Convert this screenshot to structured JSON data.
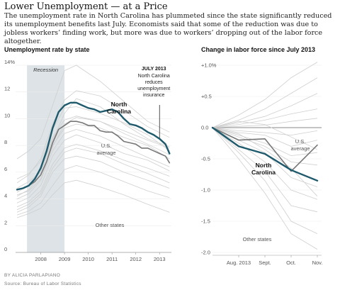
{
  "header": {
    "title": "Lower Unemployment — at a Price",
    "dek": "The unemployment rate in North Carolina has plummeted since the state significantly reduced its unemployment benefits last July. Economists said that some of the reduction was due to jobless workers’ finding work, but more was due to workers’ dropping out of the labor force altogether."
  },
  "footer": {
    "byline": "BY ALICIA PARLAPIANO",
    "source": "Source: Bureau of Labor Statistics"
  },
  "colors": {
    "north_carolina": "#1e5a6b",
    "us_average": "#777777",
    "other_states": "#cfcfcf",
    "recession_band": "#dde3e6"
  },
  "chart_data": [
    {
      "type": "line",
      "title": "Unemployment rate by state",
      "ylim": [
        0,
        14
      ],
      "yticks": [
        "0",
        "2",
        "4",
        "6",
        "8",
        "10",
        "12",
        "14%"
      ],
      "xticks": [
        "2008",
        "2009",
        "2010",
        "2011",
        "2012",
        "2013"
      ],
      "xrange": [
        2007.5,
        2014.0
      ],
      "annotations": {
        "recession": {
          "label": "Recession",
          "start": 2007.92,
          "end": 2009.5
        },
        "july2013_title": "JULY 2013",
        "july2013_lines": [
          "North Carolina",
          "reduces",
          "unemployment",
          "insurance"
        ],
        "july2013_x": 2013.5,
        "nc_label": [
          "North",
          "Carolina"
        ],
        "us_label": [
          "U.S.",
          "average"
        ],
        "other_label": "Other states"
      },
      "series": [
        {
          "name": "North Carolina",
          "role": "nc",
          "points": [
            [
              2007.5,
              4.7
            ],
            [
              2007.75,
              4.8
            ],
            [
              2008.0,
              5.0
            ],
            [
              2008.25,
              5.5
            ],
            [
              2008.5,
              6.3
            ],
            [
              2008.75,
              7.6
            ],
            [
              2009.0,
              9.3
            ],
            [
              2009.25,
              10.5
            ],
            [
              2009.5,
              11.0
            ],
            [
              2009.75,
              11.2
            ],
            [
              2010.0,
              11.2
            ],
            [
              2010.25,
              11.0
            ],
            [
              2010.5,
              10.8
            ],
            [
              2010.75,
              10.7
            ],
            [
              2011.0,
              10.5
            ],
            [
              2011.25,
              10.6
            ],
            [
              2011.5,
              10.7
            ],
            [
              2011.75,
              10.5
            ],
            [
              2012.0,
              10.0
            ],
            [
              2012.25,
              9.6
            ],
            [
              2012.5,
              9.5
            ],
            [
              2012.75,
              9.3
            ],
            [
              2013.0,
              9.0
            ],
            [
              2013.25,
              8.8
            ],
            [
              2013.5,
              8.5
            ],
            [
              2013.75,
              8.1
            ],
            [
              2013.92,
              7.4
            ]
          ]
        },
        {
          "name": "U.S. average",
          "role": "us",
          "points": [
            [
              2007.5,
              4.7
            ],
            [
              2007.75,
              4.8
            ],
            [
              2008.0,
              5.0
            ],
            [
              2008.25,
              5.3
            ],
            [
              2008.5,
              5.8
            ],
            [
              2008.75,
              6.8
            ],
            [
              2009.0,
              8.2
            ],
            [
              2009.25,
              9.2
            ],
            [
              2009.5,
              9.5
            ],
            [
              2009.75,
              9.8
            ],
            [
              2010.0,
              9.8
            ],
            [
              2010.25,
              9.7
            ],
            [
              2010.5,
              9.5
            ],
            [
              2010.75,
              9.5
            ],
            [
              2011.0,
              9.1
            ],
            [
              2011.25,
              9.0
            ],
            [
              2011.5,
              9.0
            ],
            [
              2011.75,
              8.7
            ],
            [
              2012.0,
              8.3
            ],
            [
              2012.25,
              8.2
            ],
            [
              2012.5,
              8.1
            ],
            [
              2012.75,
              7.8
            ],
            [
              2013.0,
              7.8
            ],
            [
              2013.25,
              7.6
            ],
            [
              2013.5,
              7.4
            ],
            [
              2013.75,
              7.2
            ],
            [
              2013.92,
              6.7
            ]
          ]
        }
      ],
      "other_states": [
        [
          [
            2007.5,
            3.0
          ],
          [
            2008.0,
            3.4
          ],
          [
            2008.5,
            4.2
          ],
          [
            2009.0,
            6.0
          ],
          [
            2009.5,
            7.0
          ],
          [
            2010.0,
            7.2
          ],
          [
            2011.0,
            6.8
          ],
          [
            2012.0,
            6.0
          ],
          [
            2013.0,
            5.4
          ],
          [
            2013.92,
            4.8
          ]
        ],
        [
          [
            2007.5,
            2.8
          ],
          [
            2008.0,
            3.1
          ],
          [
            2008.5,
            3.7
          ],
          [
            2009.0,
            5.0
          ],
          [
            2009.5,
            6.2
          ],
          [
            2010.0,
            6.5
          ],
          [
            2011.0,
            6.0
          ],
          [
            2012.0,
            5.3
          ],
          [
            2013.0,
            4.6
          ],
          [
            2013.92,
            4.1
          ]
        ],
        [
          [
            2007.5,
            3.4
          ],
          [
            2008.0,
            3.8
          ],
          [
            2008.5,
            4.6
          ],
          [
            2009.0,
            6.6
          ],
          [
            2009.5,
            7.8
          ],
          [
            2010.0,
            8.1
          ],
          [
            2011.0,
            7.6
          ],
          [
            2012.0,
            6.9
          ],
          [
            2013.0,
            6.3
          ],
          [
            2013.92,
            5.7
          ]
        ],
        [
          [
            2007.5,
            4.0
          ],
          [
            2008.0,
            4.4
          ],
          [
            2008.5,
            5.4
          ],
          [
            2009.0,
            7.6
          ],
          [
            2009.5,
            8.9
          ],
          [
            2010.0,
            9.2
          ],
          [
            2011.0,
            8.7
          ],
          [
            2012.0,
            7.9
          ],
          [
            2013.0,
            7.1
          ],
          [
            2013.92,
            6.4
          ]
        ],
        [
          [
            2007.5,
            4.5
          ],
          [
            2008.0,
            5.0
          ],
          [
            2008.5,
            6.2
          ],
          [
            2009.0,
            8.6
          ],
          [
            2009.5,
            9.9
          ],
          [
            2010.0,
            10.2
          ],
          [
            2011.0,
            9.8
          ],
          [
            2012.0,
            8.9
          ],
          [
            2013.0,
            8.1
          ],
          [
            2013.92,
            7.3
          ]
        ],
        [
          [
            2007.5,
            5.2
          ],
          [
            2008.0,
            5.8
          ],
          [
            2008.5,
            7.0
          ],
          [
            2009.0,
            9.6
          ],
          [
            2009.5,
            11.4
          ],
          [
            2010.0,
            12.1
          ],
          [
            2011.0,
            11.7
          ],
          [
            2012.0,
            10.6
          ],
          [
            2013.0,
            9.4
          ],
          [
            2013.92,
            8.6
          ]
        ],
        [
          [
            2007.5,
            7.0
          ],
          [
            2008.0,
            7.6
          ],
          [
            2008.5,
            8.5
          ],
          [
            2009.0,
            11.0
          ],
          [
            2009.5,
            13.6
          ],
          [
            2010.0,
            14.0
          ],
          [
            2011.0,
            12.8
          ],
          [
            2012.0,
            11.3
          ],
          [
            2013.0,
            9.8
          ],
          [
            2013.92,
            9.0
          ]
        ],
        [
          [
            2007.5,
            4.8
          ],
          [
            2008.0,
            5.3
          ],
          [
            2008.5,
            6.0
          ],
          [
            2009.0,
            8.4
          ],
          [
            2009.5,
            10.4
          ],
          [
            2010.0,
            11.5
          ],
          [
            2011.0,
            10.9
          ],
          [
            2012.0,
            9.6
          ],
          [
            2013.0,
            8.5
          ],
          [
            2013.92,
            7.9
          ]
        ],
        [
          [
            2007.5,
            3.7
          ],
          [
            2008.0,
            4.1
          ],
          [
            2008.5,
            5.0
          ],
          [
            2009.0,
            7.2
          ],
          [
            2009.5,
            8.4
          ],
          [
            2010.0,
            8.8
          ],
          [
            2011.0,
            8.2
          ],
          [
            2012.0,
            7.4
          ],
          [
            2013.0,
            6.9
          ],
          [
            2013.92,
            6.1
          ]
        ],
        [
          [
            2007.5,
            5.5
          ],
          [
            2008.0,
            5.9
          ],
          [
            2008.5,
            6.8
          ],
          [
            2009.0,
            9.2
          ],
          [
            2009.5,
            10.8
          ],
          [
            2010.0,
            10.9
          ],
          [
            2011.0,
            10.4
          ],
          [
            2012.0,
            9.7
          ],
          [
            2013.0,
            8.8
          ],
          [
            2013.92,
            7.6
          ]
        ],
        [
          [
            2007.5,
            2.6
          ],
          [
            2008.0,
            2.9
          ],
          [
            2008.5,
            3.3
          ],
          [
            2009.0,
            4.3
          ],
          [
            2009.5,
            5.2
          ],
          [
            2010.0,
            5.4
          ],
          [
            2011.0,
            4.9
          ],
          [
            2012.0,
            4.3
          ],
          [
            2013.0,
            3.6
          ],
          [
            2013.92,
            3.0
          ]
        ],
        [
          [
            2007.5,
            4.2
          ],
          [
            2008.0,
            4.7
          ],
          [
            2008.5,
            5.8
          ],
          [
            2009.0,
            8.0
          ],
          [
            2009.5,
            9.3
          ],
          [
            2010.0,
            9.6
          ],
          [
            2011.0,
            9.3
          ],
          [
            2012.0,
            8.6
          ],
          [
            2013.0,
            8.0
          ],
          [
            2013.92,
            7.0
          ]
        ],
        [
          [
            2007.5,
            3.2
          ],
          [
            2008.0,
            3.6
          ],
          [
            2008.5,
            4.4
          ],
          [
            2009.0,
            6.3
          ],
          [
            2009.5,
            7.5
          ],
          [
            2010.0,
            7.8
          ],
          [
            2011.0,
            7.4
          ],
          [
            2012.0,
            6.6
          ],
          [
            2013.0,
            5.9
          ],
          [
            2013.92,
            5.2
          ]
        ],
        [
          [
            2007.5,
            4.3
          ],
          [
            2008.0,
            4.6
          ],
          [
            2008.5,
            5.5
          ],
          [
            2009.0,
            7.9
          ],
          [
            2009.5,
            9.6
          ],
          [
            2010.0,
            10.1
          ],
          [
            2011.0,
            9.8
          ],
          [
            2012.0,
            9.1
          ],
          [
            2013.0,
            8.4
          ],
          [
            2013.92,
            7.8
          ]
        ]
      ]
    },
    {
      "type": "line",
      "title": "Change in labor force since July 2013",
      "ylim": [
        -2.0,
        1.0
      ],
      "yticks": [
        "-2.0",
        "-1.5",
        "-1.0",
        "-0.5",
        "0.0",
        "+0.5",
        "+1.0%"
      ],
      "categories": [
        "July 2013",
        "Aug. 2013",
        "Sept.",
        "Oct.",
        "Nov."
      ],
      "xticks": [
        "Aug. 2013",
        "Sept.",
        "Oct.",
        "Nov."
      ],
      "annotations": {
        "nc_label": [
          "North",
          "Carolina"
        ],
        "us_label": [
          "U.S.",
          "average"
        ],
        "other_label": "Other states"
      },
      "series": [
        {
          "name": "North Carolina",
          "role": "nc",
          "values": [
            0.0,
            -0.3,
            -0.42,
            -0.68,
            -0.85
          ]
        },
        {
          "name": "U.S. average",
          "role": "us",
          "values": [
            0.0,
            -0.2,
            -0.18,
            -0.7,
            -0.28
          ]
        }
      ],
      "other_states": [
        [
          0.0,
          0.2,
          0.45,
          0.8,
          1.05
        ],
        [
          0.0,
          0.12,
          0.3,
          0.55,
          0.8
        ],
        [
          0.0,
          0.08,
          0.18,
          0.35,
          0.55
        ],
        [
          0.0,
          0.05,
          0.12,
          0.22,
          0.3
        ],
        [
          0.0,
          0.02,
          0.04,
          0.1,
          0.15
        ],
        [
          0.0,
          -0.05,
          -0.08,
          -0.12,
          -0.05
        ],
        [
          0.0,
          -0.08,
          -0.12,
          -0.3,
          -0.2
        ],
        [
          0.0,
          -0.12,
          -0.25,
          -0.45,
          -0.4
        ],
        [
          0.0,
          -0.15,
          -0.3,
          -0.55,
          -0.6
        ],
        [
          0.0,
          -0.2,
          -0.4,
          -0.8,
          -0.95
        ],
        [
          0.0,
          -0.25,
          -0.55,
          -1.0,
          -1.15
        ],
        [
          0.0,
          -0.35,
          -0.7,
          -1.25,
          -1.35
        ],
        [
          0.0,
          -0.4,
          -0.85,
          -1.5,
          -1.7
        ],
        [
          0.0,
          -0.5,
          -1.05,
          -1.7,
          -1.95
        ],
        [
          0.0,
          -0.1,
          -0.35,
          -0.65,
          -1.1
        ],
        [
          0.0,
          0.1,
          0.05,
          -0.15,
          -0.35
        ]
      ]
    }
  ]
}
